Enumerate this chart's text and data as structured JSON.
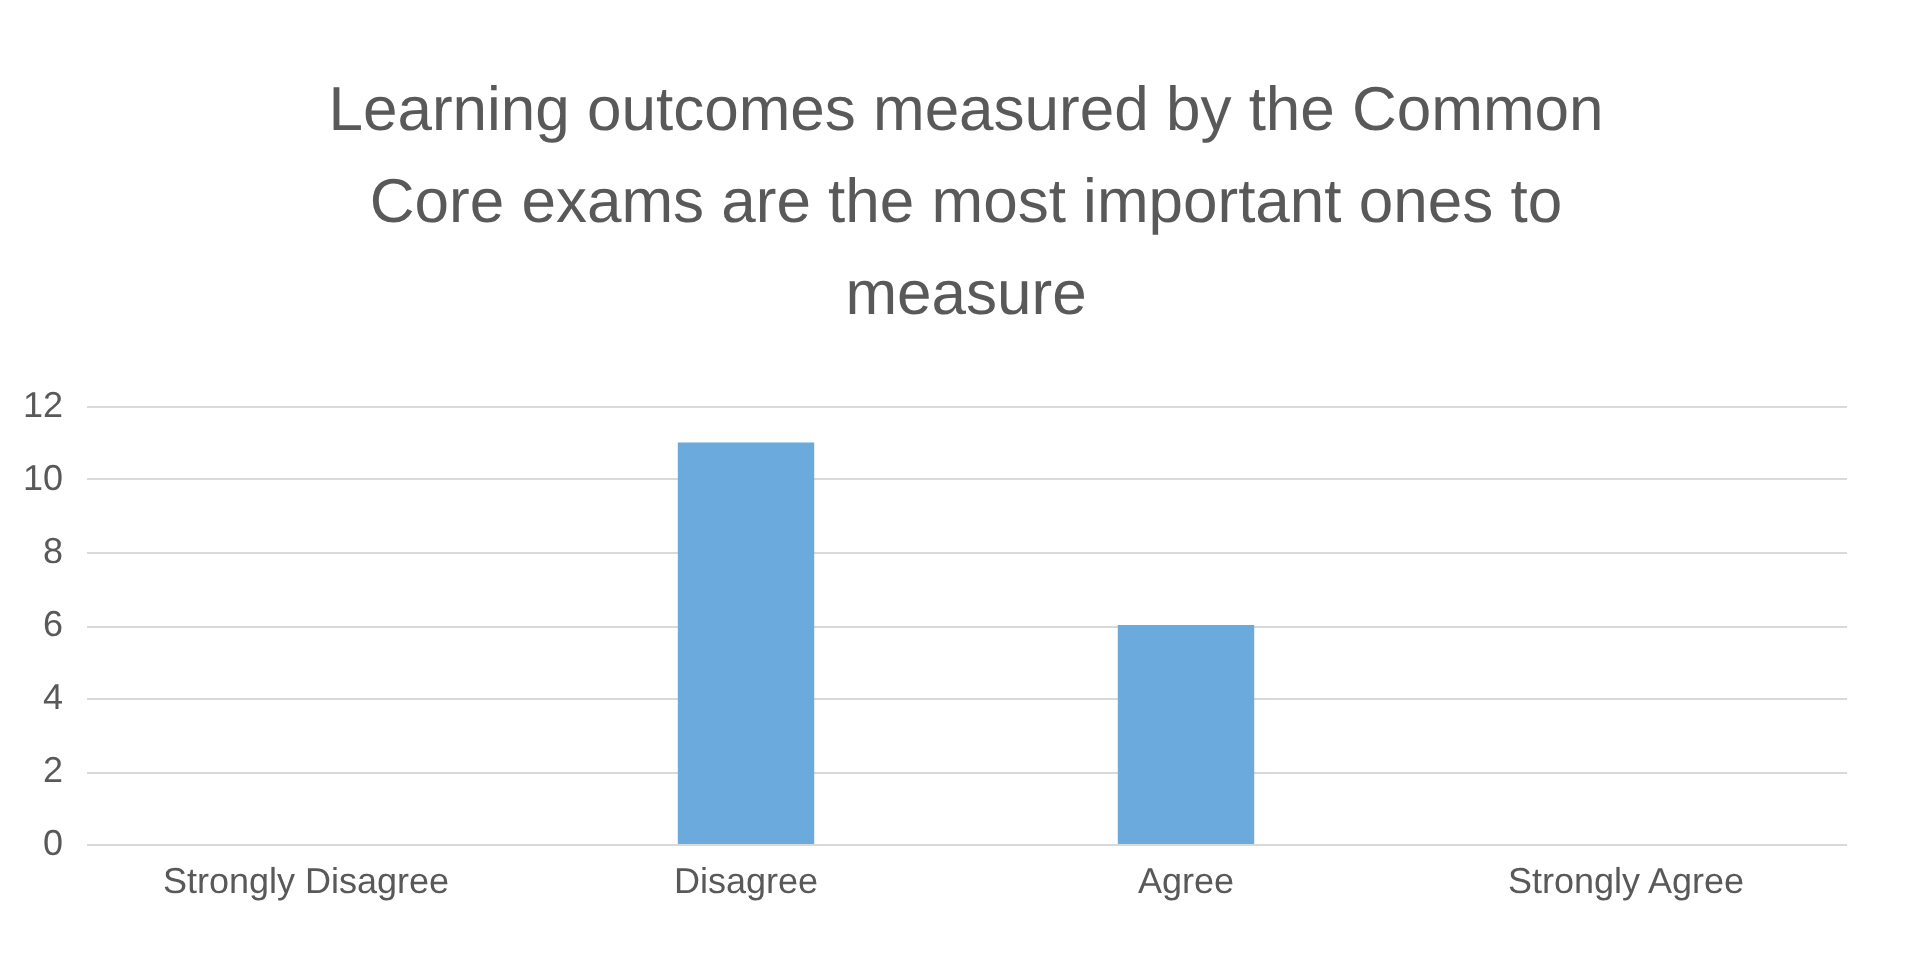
{
  "chart_data": {
    "type": "bar",
    "title": "Learning outcomes measured by the Common Core exams are the most important ones to measure",
    "categories": [
      "Strongly Disagree",
      "Disagree",
      "Agree",
      "Strongly Agree"
    ],
    "values": [
      0,
      11,
      6,
      0
    ],
    "color": "#6aaadc",
    "ylim": [
      0,
      12
    ],
    "yticks": [
      0,
      2,
      4,
      6,
      8,
      10,
      12
    ],
    "grid": "y"
  }
}
